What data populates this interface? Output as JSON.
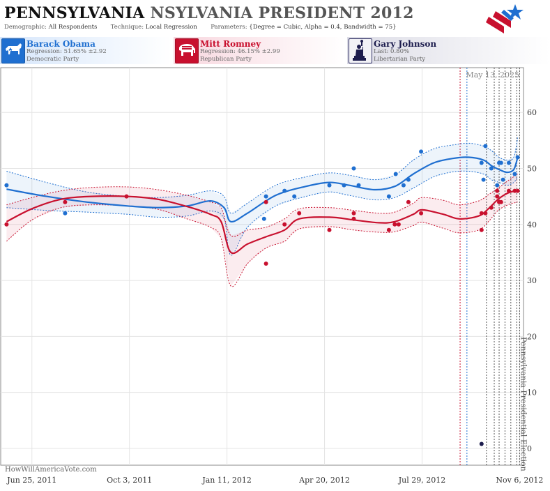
{
  "header": {
    "title_primary": "PENNSYLVANIA",
    "title_secondary": "NSYLVANIA PRESIDENT 2012",
    "demographic_label": "Demographic:",
    "demographic_value": "All Respondents",
    "technique_label": "Technique:",
    "technique_value": "Local Regression",
    "parameters_label": "Parameters:",
    "parameters_value": "{Degree = Cubic, Alpha = 0.4, Bandwidth = 75}"
  },
  "candidates": [
    {
      "name": "Barack Obama",
      "stat": "Regression: 51.65% ±2.92",
      "party": "Democratic Party",
      "icon": "donkey-icon",
      "color": "#1f6fd0"
    },
    {
      "name": "Mitt Romney",
      "stat": "Regression: 46.15% ±2.99",
      "party": "Republican Party",
      "icon": "elephant-icon",
      "color": "#c8102e"
    },
    {
      "name": "Gary Johnson",
      "stat": "Last: 0.80%",
      "party": "Libertarian Party",
      "icon": "statue-of-liberty-icon",
      "color": "#1c1c4d"
    }
  ],
  "footer": {
    "site": "HowWillAmericaVote.com"
  },
  "chart_data": {
    "type": "line",
    "date_label": "May 13, 2025",
    "event_label": "Pennsylvania Presidential Election",
    "x_ticks": [
      "Jun 25, 2011",
      "Oct 3, 2011",
      "Jan 11, 2012",
      "Apr 20, 2012",
      "Jul 29, 2012",
      "Nov 6, 2012"
    ],
    "y_ticks": [
      0,
      10,
      20,
      30,
      40,
      50,
      60
    ],
    "ylim": [
      -3,
      68
    ],
    "xlim": [
      "2011-05-24",
      "2012-11-10"
    ],
    "grid": true,
    "series": [
      {
        "name": "Barack Obama",
        "color": "#1f6fd0",
        "trend": [
          [
            "2011-05-30",
            46.3
          ],
          [
            "2011-07-10",
            45.0
          ],
          [
            "2011-08-20",
            44.0
          ],
          [
            "2011-10-01",
            43.3
          ],
          [
            "2011-11-01",
            43.0
          ],
          [
            "2011-12-01",
            43.3
          ],
          [
            "2011-12-25",
            44.2
          ],
          [
            "2012-01-08",
            43.0
          ],
          [
            "2012-01-15",
            40.5
          ],
          [
            "2012-02-01",
            42.0
          ],
          [
            "2012-03-01",
            45.2
          ],
          [
            "2012-04-01",
            46.8
          ],
          [
            "2012-04-25",
            47.5
          ],
          [
            "2012-05-15",
            47.0
          ],
          [
            "2012-06-10",
            46.2
          ],
          [
            "2012-07-01",
            46.8
          ],
          [
            "2012-07-20",
            49.0
          ],
          [
            "2012-08-10",
            51.0
          ],
          [
            "2012-08-30",
            51.8
          ],
          [
            "2012-09-15",
            52.0
          ],
          [
            "2012-09-30",
            51.5
          ],
          [
            "2012-10-08",
            50.5
          ],
          [
            "2012-10-16",
            49.8
          ],
          [
            "2012-10-24",
            49.3
          ],
          [
            "2012-10-31",
            49.8
          ],
          [
            "2012-11-04",
            52.0
          ]
        ],
        "upper": [
          [
            "2011-05-30",
            49.5
          ],
          [
            "2011-07-10",
            47.5
          ],
          [
            "2011-08-20",
            45.8
          ],
          [
            "2011-10-01",
            45.0
          ],
          [
            "2011-11-01",
            44.8
          ],
          [
            "2011-12-01",
            45.2
          ],
          [
            "2011-12-25",
            46.0
          ],
          [
            "2012-01-08",
            45.0
          ],
          [
            "2012-01-15",
            42.0
          ],
          [
            "2012-02-01",
            43.8
          ],
          [
            "2012-03-01",
            47.0
          ],
          [
            "2012-04-01",
            48.5
          ],
          [
            "2012-04-25",
            49.2
          ],
          [
            "2012-05-15",
            48.8
          ],
          [
            "2012-06-10",
            48.0
          ],
          [
            "2012-07-01",
            48.8
          ],
          [
            "2012-07-20",
            51.5
          ],
          [
            "2012-08-10",
            53.5
          ],
          [
            "2012-08-30",
            54.2
          ],
          [
            "2012-09-15",
            54.5
          ],
          [
            "2012-09-30",
            54.0
          ],
          [
            "2012-10-08",
            53.2
          ],
          [
            "2012-10-16",
            52.0
          ],
          [
            "2012-10-24",
            51.5
          ],
          [
            "2012-10-31",
            52.0
          ],
          [
            "2012-11-04",
            55.5
          ]
        ],
        "lower": [
          [
            "2011-05-30",
            43.0
          ],
          [
            "2011-07-10",
            42.5
          ],
          [
            "2011-08-20",
            42.2
          ],
          [
            "2011-10-01",
            41.8
          ],
          [
            "2011-11-01",
            41.3
          ],
          [
            "2011-12-01",
            41.5
          ],
          [
            "2011-12-25",
            42.4
          ],
          [
            "2012-01-08",
            41.0
          ],
          [
            "2012-01-15",
            34.5
          ],
          [
            "2012-02-01",
            39.5
          ],
          [
            "2012-03-01",
            43.3
          ],
          [
            "2012-04-01",
            45.0
          ],
          [
            "2012-04-25",
            45.8
          ],
          [
            "2012-05-15",
            45.2
          ],
          [
            "2012-06-10",
            44.4
          ],
          [
            "2012-07-01",
            44.8
          ],
          [
            "2012-07-20",
            46.5
          ],
          [
            "2012-08-10",
            48.5
          ],
          [
            "2012-08-30",
            49.4
          ],
          [
            "2012-09-15",
            49.5
          ],
          [
            "2012-09-30",
            49.0
          ],
          [
            "2012-10-08",
            48.0
          ],
          [
            "2012-10-16",
            47.5
          ],
          [
            "2012-10-24",
            47.0
          ],
          [
            "2012-10-31",
            47.5
          ],
          [
            "2012-11-04",
            48.5
          ]
        ],
        "polls": [
          [
            "2011-05-30",
            47
          ],
          [
            "2011-07-29",
            42
          ],
          [
            "2012-02-18",
            41
          ],
          [
            "2012-02-20",
            45
          ],
          [
            "2012-03-10",
            46
          ],
          [
            "2012-03-20",
            45
          ],
          [
            "2012-04-25",
            47
          ],
          [
            "2012-05-10",
            47
          ],
          [
            "2012-05-20",
            50
          ],
          [
            "2012-05-25",
            47
          ],
          [
            "2012-06-25",
            45
          ],
          [
            "2012-07-02",
            49
          ],
          [
            "2012-07-10",
            47
          ],
          [
            "2012-07-15",
            48
          ],
          [
            "2012-07-28",
            53
          ],
          [
            "2012-09-28",
            51
          ],
          [
            "2012-10-02",
            54
          ],
          [
            "2012-09-30",
            48
          ],
          [
            "2012-10-08",
            50
          ],
          [
            "2012-10-14",
            47
          ],
          [
            "2012-10-16",
            51
          ],
          [
            "2012-10-18",
            51
          ],
          [
            "2012-10-20",
            48
          ],
          [
            "2012-10-26",
            51
          ],
          [
            "2012-11-01",
            49
          ],
          [
            "2012-11-04",
            52
          ]
        ]
      },
      {
        "name": "Mitt Romney",
        "color": "#c8102e",
        "trend": [
          [
            "2011-05-30",
            40.5
          ],
          [
            "2011-06-25",
            42.8
          ],
          [
            "2011-07-25",
            44.5
          ],
          [
            "2011-08-25",
            45.0
          ],
          [
            "2011-10-01",
            45.0
          ],
          [
            "2011-11-01",
            44.5
          ],
          [
            "2011-12-01",
            43.2
          ],
          [
            "2011-12-25",
            41.8
          ],
          [
            "2012-01-05",
            40.5
          ],
          [
            "2012-01-15",
            35.0
          ],
          [
            "2012-02-01",
            36.5
          ],
          [
            "2012-02-20",
            37.8
          ],
          [
            "2012-03-10",
            39.0
          ],
          [
            "2012-03-25",
            41.0
          ],
          [
            "2012-04-25",
            41.3
          ],
          [
            "2012-05-20",
            40.8
          ],
          [
            "2012-06-15",
            40.3
          ],
          [
            "2012-07-01",
            40.5
          ],
          [
            "2012-07-20",
            41.8
          ],
          [
            "2012-07-29",
            42.6
          ],
          [
            "2012-08-20",
            41.8
          ],
          [
            "2012-09-05",
            41.0
          ],
          [
            "2012-09-25",
            41.5
          ],
          [
            "2012-10-05",
            42.8
          ],
          [
            "2012-10-15",
            44.5
          ],
          [
            "2012-10-25",
            45.6
          ],
          [
            "2012-11-04",
            46.1
          ]
        ],
        "upper": [
          [
            "2011-05-30",
            43.5
          ],
          [
            "2011-06-25",
            44.8
          ],
          [
            "2011-07-25",
            46.0
          ],
          [
            "2011-08-25",
            46.6
          ],
          [
            "2011-10-01",
            46.7
          ],
          [
            "2011-11-01",
            46.2
          ],
          [
            "2011-12-01",
            45.2
          ],
          [
            "2011-12-25",
            44.0
          ],
          [
            "2012-01-05",
            43.0
          ],
          [
            "2012-01-15",
            38.0
          ],
          [
            "2012-02-01",
            39.0
          ],
          [
            "2012-02-20",
            39.5
          ],
          [
            "2012-03-10",
            41.0
          ],
          [
            "2012-03-25",
            42.8
          ],
          [
            "2012-04-25",
            43.0
          ],
          [
            "2012-05-20",
            42.5
          ],
          [
            "2012-06-15",
            42.0
          ],
          [
            "2012-07-01",
            42.2
          ],
          [
            "2012-07-20",
            43.8
          ],
          [
            "2012-07-29",
            44.8
          ],
          [
            "2012-08-20",
            44.3
          ],
          [
            "2012-09-05",
            43.5
          ],
          [
            "2012-09-25",
            44.2
          ],
          [
            "2012-10-05",
            45.3
          ],
          [
            "2012-10-15",
            46.5
          ],
          [
            "2012-10-25",
            47.8
          ],
          [
            "2012-11-04",
            49.0
          ]
        ],
        "lower": [
          [
            "2011-05-30",
            37.0
          ],
          [
            "2011-06-25",
            40.8
          ],
          [
            "2011-07-25",
            43.0
          ],
          [
            "2011-08-25",
            43.5
          ],
          [
            "2011-10-01",
            43.3
          ],
          [
            "2011-11-01",
            42.7
          ],
          [
            "2011-12-01",
            41.0
          ],
          [
            "2011-12-25",
            39.5
          ],
          [
            "2012-01-05",
            37.5
          ],
          [
            "2012-01-15",
            29.0
          ],
          [
            "2012-02-01",
            33.0
          ],
          [
            "2012-02-20",
            35.8
          ],
          [
            "2012-03-10",
            37.0
          ],
          [
            "2012-03-25",
            39.2
          ],
          [
            "2012-04-25",
            39.6
          ],
          [
            "2012-05-20",
            39.0
          ],
          [
            "2012-06-15",
            38.6
          ],
          [
            "2012-07-01",
            38.7
          ],
          [
            "2012-07-20",
            39.8
          ],
          [
            "2012-07-29",
            40.4
          ],
          [
            "2012-08-20",
            39.3
          ],
          [
            "2012-09-05",
            38.5
          ],
          [
            "2012-09-25",
            39.0
          ],
          [
            "2012-10-05",
            40.5
          ],
          [
            "2012-10-15",
            42.5
          ],
          [
            "2012-10-25",
            43.5
          ],
          [
            "2012-11-04",
            44.0
          ]
        ],
        "polls": [
          [
            "2011-05-30",
            40
          ],
          [
            "2011-07-29",
            44
          ],
          [
            "2011-09-30",
            45
          ],
          [
            "2012-02-20",
            33
          ],
          [
            "2012-02-20",
            44
          ],
          [
            "2012-03-10",
            40
          ],
          [
            "2012-03-25",
            42
          ],
          [
            "2012-04-25",
            39
          ],
          [
            "2012-05-20",
            42
          ],
          [
            "2012-05-20",
            41
          ],
          [
            "2012-06-25",
            39
          ],
          [
            "2012-07-01",
            40
          ],
          [
            "2012-07-05",
            40
          ],
          [
            "2012-07-15",
            44
          ],
          [
            "2012-07-28",
            42
          ],
          [
            "2012-09-28",
            39
          ],
          [
            "2012-09-28",
            42
          ],
          [
            "2012-10-02",
            42
          ],
          [
            "2012-10-08",
            43
          ],
          [
            "2012-10-14",
            45
          ],
          [
            "2012-10-14",
            46
          ],
          [
            "2012-10-16",
            44
          ],
          [
            "2012-10-18",
            44
          ],
          [
            "2012-10-26",
            46
          ],
          [
            "2012-11-01",
            46
          ],
          [
            "2012-11-04",
            46
          ]
        ]
      },
      {
        "name": "Gary Johnson",
        "color": "#1c1c4d",
        "polls": [
          [
            "2012-09-28",
            0.8
          ]
        ]
      }
    ],
    "vlines": [
      {
        "date": "2012-09-06",
        "color": "#c8102e"
      },
      {
        "date": "2012-09-13",
        "color": "#1f6fd0"
      },
      {
        "date": "2012-10-03",
        "color": "#555"
      },
      {
        "date": "2012-10-11",
        "color": "#555"
      },
      {
        "date": "2012-10-16",
        "color": "#555"
      },
      {
        "date": "2012-10-22",
        "color": "#555"
      },
      {
        "date": "2012-10-28",
        "color": "#555"
      },
      {
        "date": "2012-11-03",
        "color": "#555"
      }
    ],
    "event_date": "2012-11-06"
  }
}
